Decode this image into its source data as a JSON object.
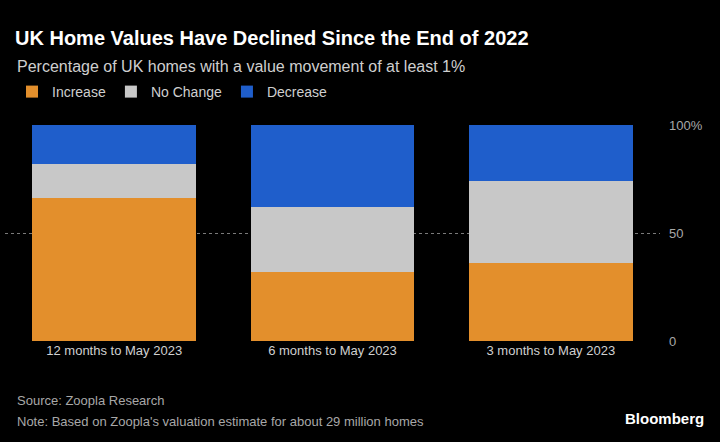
{
  "chart_data": {
    "type": "bar",
    "title": "UK Home Values Have Declined Since the End of 2022",
    "subtitle": "Percentage of UK homes with a value movement of at least 1%",
    "categories": [
      "12 months to May 2023",
      "6 months to May 2023",
      "3 months to May 2023"
    ],
    "series": [
      {
        "name": "Increase",
        "color": "#e38f2c",
        "values": [
          66,
          32,
          36
        ]
      },
      {
        "name": "No Change",
        "color": "#c8c8c8",
        "values": [
          16,
          30,
          38
        ]
      },
      {
        "name": "Decrease",
        "color": "#1f5ecb",
        "values": [
          18,
          38,
          26
        ]
      }
    ],
    "stacked": true,
    "ylim": [
      0,
      100
    ],
    "yticks": [
      0,
      50,
      {
        "value": 100,
        "label": "100%"
      }
    ],
    "grid": true,
    "legend": "top-left",
    "data_labels": false,
    "annotations": [
      "Source: Zoopla Research",
      "Note: Based on Zoopla's valuation estimate for about 29 million homes",
      "Bloomberg"
    ]
  }
}
